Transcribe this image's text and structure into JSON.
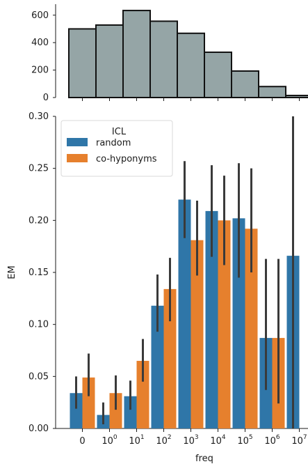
{
  "chart_data": [
    {
      "type": "bar",
      "categories": [
        "0",
        "10^0",
        "10^1",
        "10^2",
        "10^3",
        "10^4",
        "10^5",
        "10^6",
        "10^7"
      ],
      "values": [
        500,
        528,
        634,
        556,
        468,
        330,
        193,
        80,
        15
      ],
      "ylim": [
        0,
        680
      ],
      "yticks": [
        0,
        200,
        400,
        600
      ],
      "color": "#95a5a6"
    },
    {
      "type": "bar",
      "xlabel": "freq",
      "ylabel": "EM",
      "ylim": [
        0,
        0.3
      ],
      "yticks": [
        "0.00",
        "0.05",
        "0.10",
        "0.15",
        "0.20",
        "0.25",
        "0.30"
      ],
      "categories": [
        "0",
        "10^0",
        "10^1",
        "10^2",
        "10^3",
        "10^4",
        "10^5",
        "10^6",
        "10^7"
      ],
      "legend": {
        "title": "ICL",
        "position": "top-left"
      },
      "series": [
        {
          "name": "random",
          "color": "#2f76a8",
          "values": [
            0.034,
            0.013,
            0.031,
            0.118,
            0.22,
            0.209,
            0.202,
            0.087,
            0.166
          ],
          "ci_low": [
            0.019,
            0.004,
            0.018,
            0.093,
            0.183,
            0.165,
            0.145,
            0.037,
            0.0
          ],
          "ci_high": [
            0.05,
            0.025,
            0.046,
            0.148,
            0.257,
            0.253,
            0.255,
            0.163,
            0.3
          ]
        },
        {
          "name": "co-hyponyms",
          "color": "#e6802d",
          "values": [
            0.049,
            0.034,
            0.065,
            0.134,
            0.181,
            0.2,
            0.192,
            0.087,
            null
          ],
          "ci_low": [
            0.031,
            0.018,
            0.045,
            0.103,
            0.147,
            0.157,
            0.15,
            0.024,
            null
          ],
          "ci_high": [
            0.072,
            0.051,
            0.086,
            0.164,
            0.219,
            0.243,
            0.25,
            0.163,
            null
          ]
        }
      ]
    }
  ]
}
